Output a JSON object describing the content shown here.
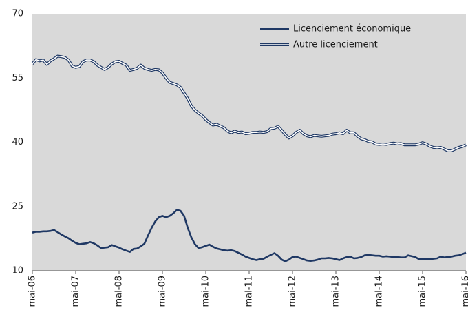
{
  "chart_data": {
    "type": "line",
    "categories": [
      "mai-06",
      null,
      null,
      null,
      null,
      null,
      null,
      null,
      null,
      null,
      null,
      null,
      "mai-07",
      null,
      null,
      null,
      null,
      null,
      null,
      null,
      null,
      null,
      null,
      null,
      "mai-08",
      null,
      null,
      null,
      null,
      null,
      null,
      null,
      null,
      null,
      null,
      null,
      "mai-09",
      null,
      null,
      null,
      null,
      null,
      null,
      null,
      null,
      null,
      null,
      null,
      "mai-10",
      null,
      null,
      null,
      null,
      null,
      null,
      null,
      null,
      null,
      null,
      null,
      "mai-11",
      null,
      null,
      null,
      null,
      null,
      null,
      null,
      null,
      null,
      null,
      null,
      "mai-12",
      null,
      null,
      null,
      null,
      null,
      null,
      null,
      null,
      null,
      null,
      null,
      "mai-13",
      null,
      null,
      null,
      null,
      null,
      null,
      null,
      null,
      null,
      null,
      null,
      "mai-14",
      null,
      null,
      null,
      null,
      null,
      null,
      null,
      null,
      null,
      null,
      null,
      "mai-15",
      null,
      null,
      null,
      null,
      null,
      null,
      null,
      null,
      null,
      null,
      null,
      "mai-16"
    ],
    "series": [
      {
        "name": "Licenciement économique",
        "color": "#1f3864",
        "style": "solid",
        "values": [
          18.9,
          19.1,
          19.1,
          19.2,
          19.2,
          19.3,
          19.5,
          19.0,
          18.5,
          18.0,
          17.6,
          17.0,
          16.5,
          16.2,
          16.3,
          16.4,
          16.7,
          16.4,
          15.9,
          15.3,
          15.4,
          15.5,
          16.0,
          15.7,
          15.4,
          15.0,
          14.7,
          14.4,
          15.1,
          15.2,
          15.7,
          16.3,
          18.2,
          20.0,
          21.5,
          22.5,
          22.8,
          22.5,
          22.8,
          23.4,
          24.2,
          24.0,
          22.8,
          20.0,
          17.8,
          16.2,
          15.3,
          15.5,
          15.8,
          16.1,
          15.6,
          15.2,
          15.0,
          14.8,
          14.7,
          14.8,
          14.6,
          14.2,
          13.8,
          13.3,
          13.0,
          12.7,
          12.5,
          12.7,
          12.8,
          13.3,
          13.7,
          14.1,
          13.5,
          12.6,
          12.2,
          12.6,
          13.2,
          13.3,
          13.0,
          12.7,
          12.4,
          12.3,
          12.4,
          12.6,
          12.9,
          12.9,
          13.0,
          12.9,
          12.7,
          12.5,
          12.9,
          13.2,
          13.3,
          12.9,
          13.0,
          13.2,
          13.6,
          13.7,
          13.6,
          13.5,
          13.5,
          13.3,
          13.4,
          13.3,
          13.2,
          13.2,
          13.1,
          13.1,
          13.6,
          13.4,
          13.2,
          12.7,
          12.7,
          12.7,
          12.7,
          12.8,
          12.9,
          13.3,
          13.1,
          13.2,
          13.3,
          13.5,
          13.6,
          13.9,
          14.2
        ]
      },
      {
        "name": "Autre licenciement",
        "color": "#1f3864",
        "style": "double",
        "values": [
          58.3,
          59.3,
          59.0,
          59.2,
          58.2,
          59.0,
          59.5,
          60.1,
          60.0,
          59.8,
          59.2,
          57.8,
          57.5,
          57.7,
          58.8,
          59.2,
          59.2,
          58.8,
          58.0,
          57.5,
          57.0,
          57.5,
          58.3,
          58.8,
          58.9,
          58.4,
          58.0,
          56.8,
          57.0,
          57.3,
          58.0,
          57.3,
          57.0,
          56.8,
          57.0,
          56.9,
          56.2,
          55.0,
          54.0,
          53.7,
          53.4,
          52.8,
          51.5,
          50.2,
          48.5,
          47.5,
          46.8,
          46.2,
          45.3,
          44.6,
          44.0,
          44.2,
          43.8,
          43.4,
          42.6,
          42.2,
          42.6,
          42.3,
          42.4,
          42.0,
          42.1,
          42.3,
          42.3,
          42.4,
          42.3,
          42.5,
          43.2,
          43.3,
          43.7,
          42.8,
          41.8,
          41.0,
          41.5,
          42.3,
          42.8,
          42.0,
          41.5,
          41.3,
          41.6,
          41.5,
          41.4,
          41.5,
          41.6,
          41.9,
          42.0,
          42.2,
          42.0,
          42.8,
          42.2,
          42.2,
          41.4,
          40.8,
          40.6,
          40.2,
          40.1,
          39.6,
          39.5,
          39.6,
          39.5,
          39.7,
          39.8,
          39.6,
          39.7,
          39.4,
          39.4,
          39.4,
          39.4,
          39.6,
          39.9,
          39.6,
          39.1,
          38.8,
          38.7,
          38.8,
          38.4,
          38.0,
          38.0,
          38.4,
          38.8,
          39.0,
          39.4
        ]
      }
    ],
    "ylim": [
      10,
      70
    ],
    "yticks": [
      10,
      25,
      40,
      55,
      70
    ],
    "grid": false,
    "legend": "upper-right",
    "background": "#d9d9d9"
  }
}
